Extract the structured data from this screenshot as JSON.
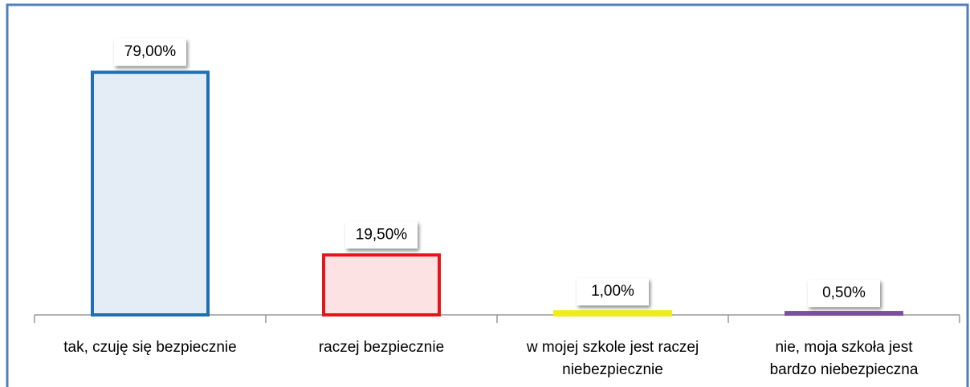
{
  "chart_data": {
    "type": "bar",
    "categories": [
      "tak, czuję się bezpiecznie",
      "raczej bezpiecznie",
      "w mojej szkole jest raczej niebezpiecznie",
      "nie, moja szkoła jest bardzo niebezpieczna"
    ],
    "values": [
      79,
      19.5,
      1,
      0.5
    ],
    "value_labels": [
      "79,00%",
      "19,50%",
      "1,00%",
      "0,50%"
    ],
    "colors": [
      "#1f6fb5",
      "#e8141b",
      "#f0ec1c",
      "#7b4fa0"
    ],
    "ylim": [
      0,
      90
    ]
  }
}
